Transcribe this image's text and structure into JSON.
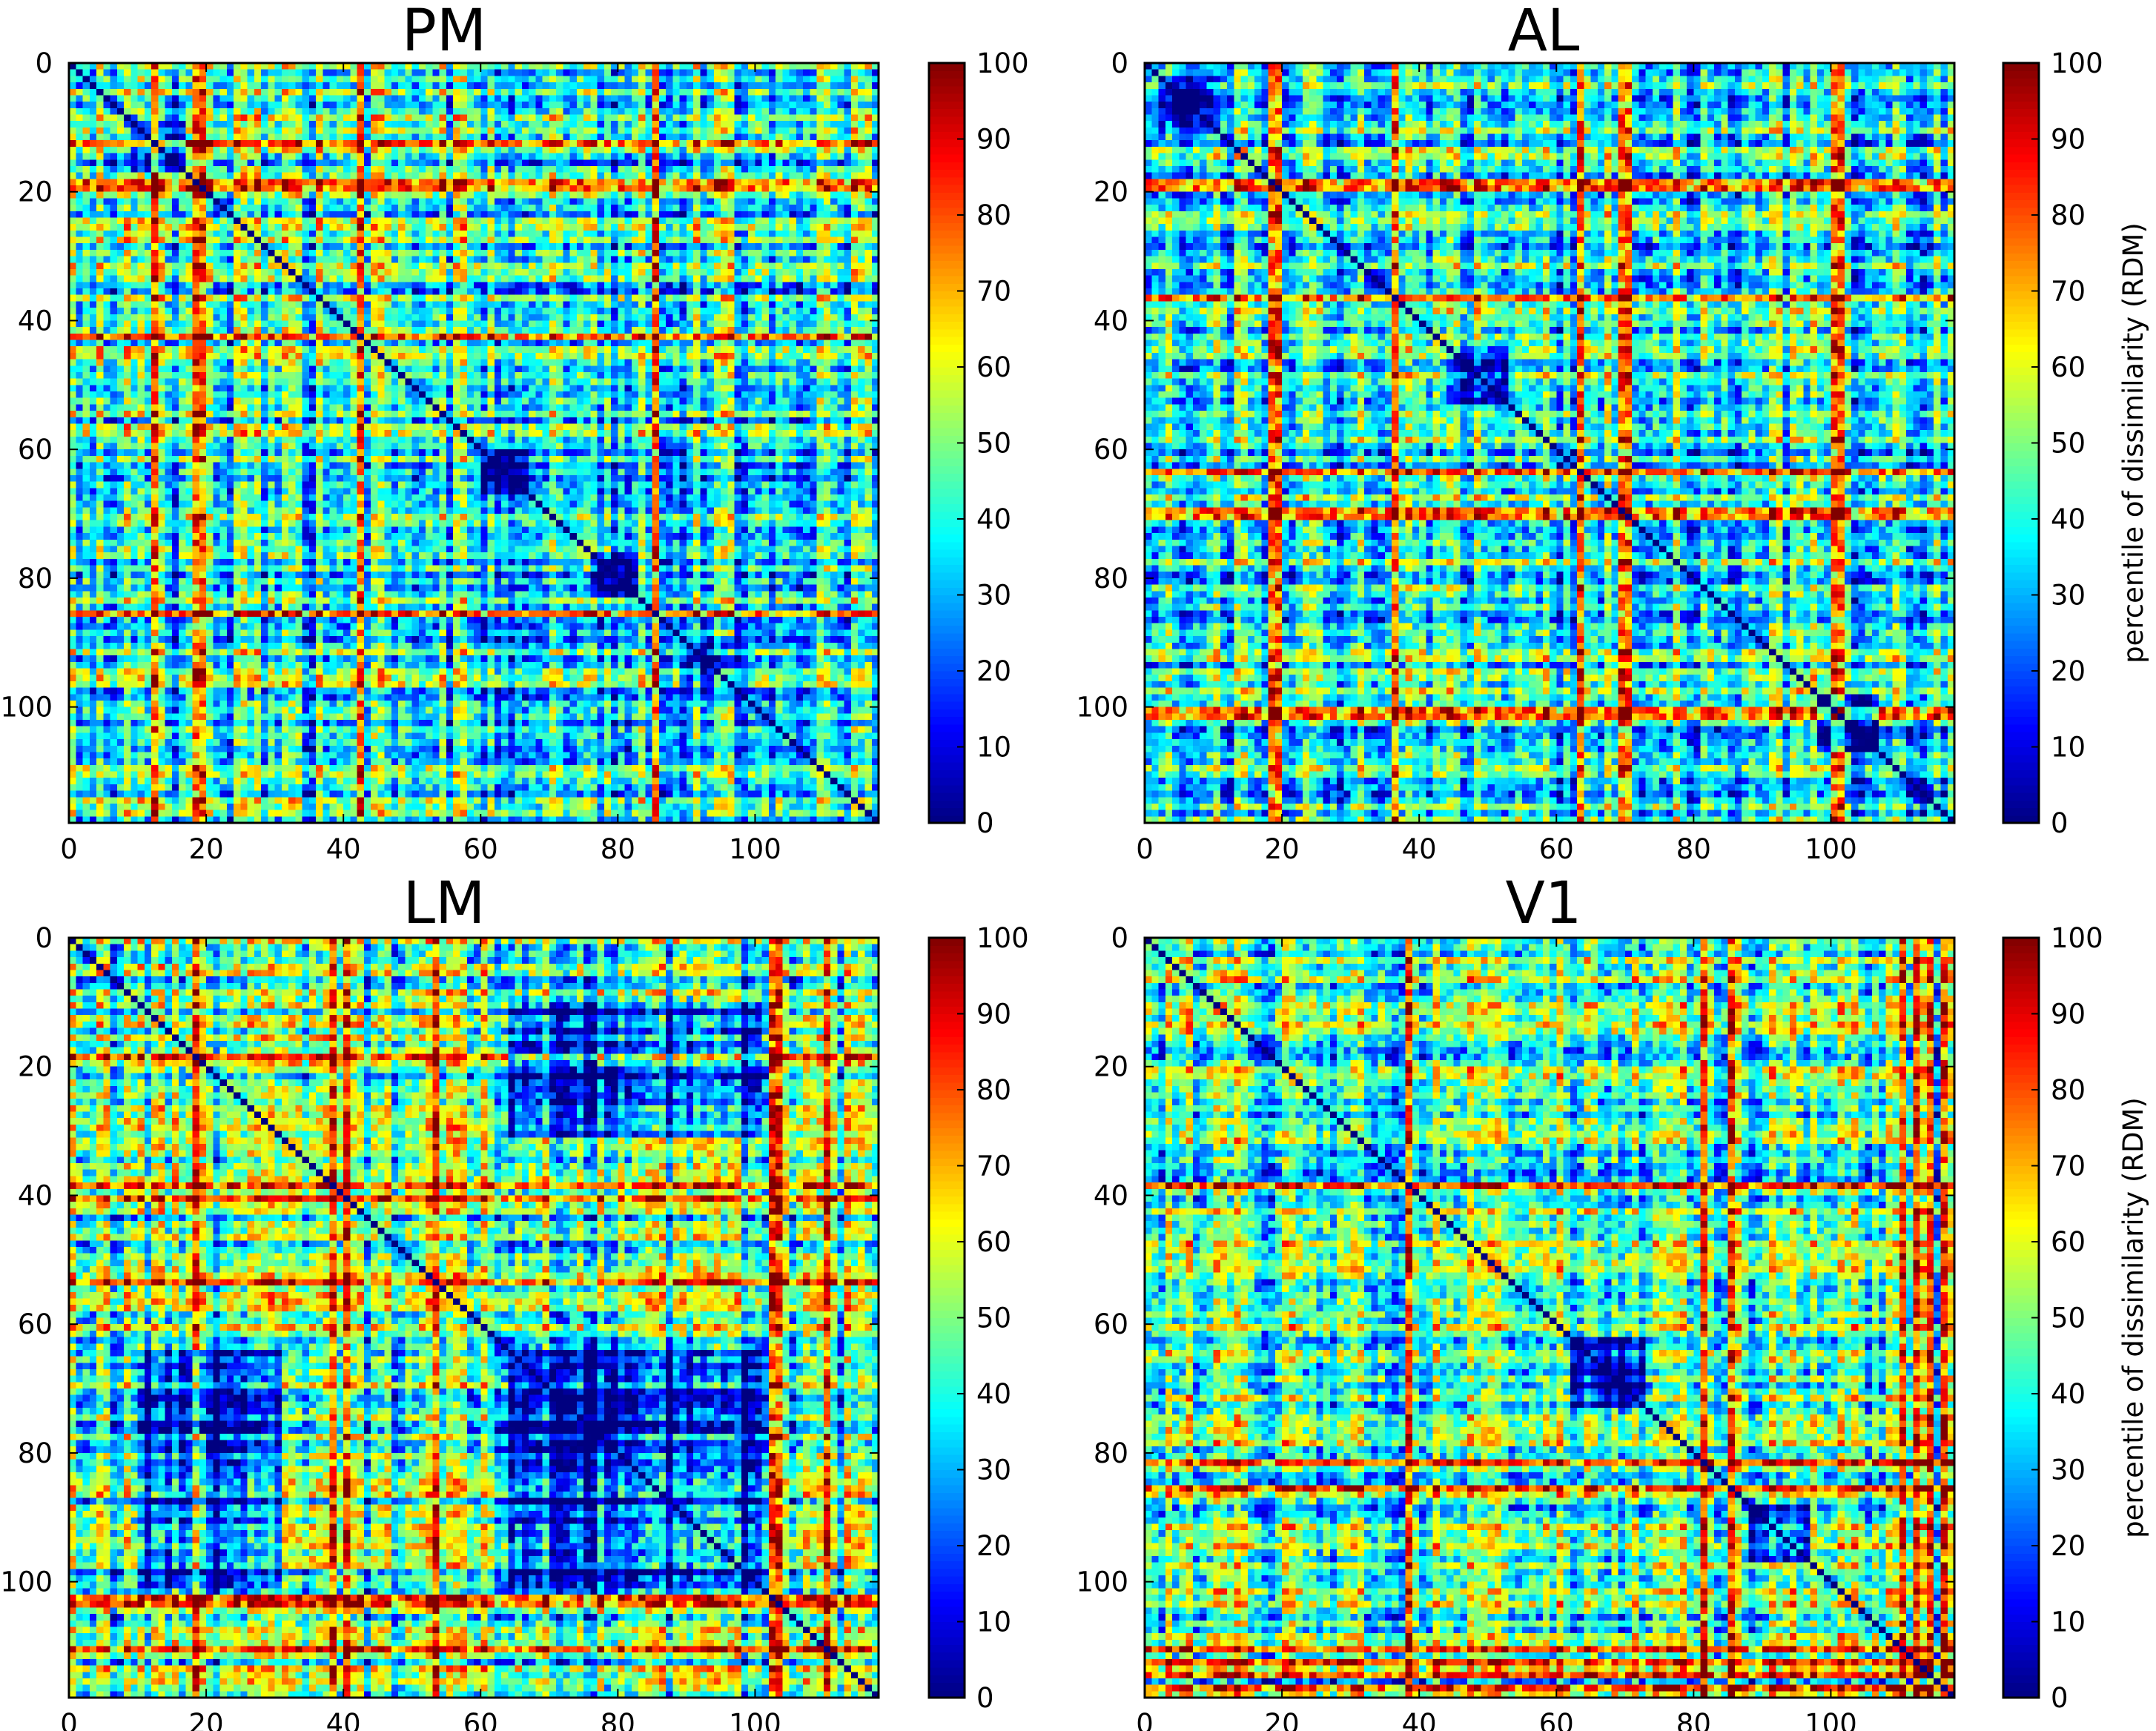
{
  "chart_data": [
    {
      "type": "heatmap",
      "title": "PM",
      "matrix_size": 118,
      "xticks": [
        "0",
        "20",
        "40",
        "60",
        "80",
        "100"
      ],
      "yticks": [
        "0",
        "20",
        "40",
        "60",
        "80",
        "100"
      ],
      "colorbar": {
        "ticks": [
          "0",
          "10",
          "20",
          "30",
          "40",
          "50",
          "60",
          "70",
          "80",
          "90",
          "100"
        ],
        "range": [
          0,
          100
        ],
        "label": "",
        "colormap": "jet"
      },
      "diagonal_value": 0,
      "baseline_percentile": 40,
      "high_dissimilarity_stimuli": [
        18,
        19,
        85,
        42,
        12
      ],
      "low_dissimilarity_blocks": [
        {
          "rows": [
            8,
            16
          ],
          "cols": [
            8,
            16
          ]
        },
        {
          "rows": [
            60,
            66
          ],
          "cols": [
            60,
            66
          ]
        },
        {
          "rows": [
            76,
            82
          ],
          "cols": [
            76,
            82
          ]
        },
        {
          "rows": [
            90,
            96
          ],
          "cols": [
            90,
            96
          ]
        }
      ]
    },
    {
      "type": "heatmap",
      "title": "AL",
      "matrix_size": 118,
      "xticks": [
        "0",
        "20",
        "40",
        "60",
        "80",
        "100"
      ],
      "yticks": [
        "0",
        "20",
        "40",
        "60",
        "80",
        "100"
      ],
      "colorbar": {
        "ticks": [
          "0",
          "10",
          "20",
          "30",
          "40",
          "50",
          "60",
          "70",
          "80",
          "90",
          "100"
        ],
        "range": [
          0,
          100
        ],
        "label": "percentile of dissimilarity (RDM)",
        "colormap": "jet"
      },
      "diagonal_value": 0,
      "baseline_percentile": 40,
      "high_dissimilarity_stimuli": [
        69,
        70,
        100,
        101,
        36,
        63,
        18,
        19
      ],
      "low_dissimilarity_blocks": [
        {
          "rows": [
            2,
            10
          ],
          "cols": [
            2,
            10
          ]
        },
        {
          "rows": [
            98,
            106
          ],
          "cols": [
            98,
            106
          ]
        },
        {
          "rows": [
            44,
            52
          ],
          "cols": [
            44,
            52
          ]
        }
      ]
    },
    {
      "type": "heatmap",
      "title": "LM",
      "matrix_size": 118,
      "xticks": [
        "0",
        "20",
        "40",
        "60",
        "80",
        "100"
      ],
      "yticks": [
        "0",
        "20",
        "40",
        "60",
        "80",
        "100"
      ],
      "colorbar": {
        "ticks": [
          "0",
          "10",
          "20",
          "30",
          "40",
          "50",
          "60",
          "70",
          "80",
          "90",
          "100"
        ],
        "range": [
          0,
          100
        ],
        "label": "",
        "colormap": "jet"
      },
      "diagonal_value": 0,
      "baseline_percentile": 42,
      "high_dissimilarity_stimuli": [
        18,
        38,
        40,
        53,
        102,
        103,
        110
      ],
      "low_dissimilarity_blocks": [
        {
          "rows": [
            64,
            100
          ],
          "cols": [
            64,
            100
          ]
        },
        {
          "rows": [
            10,
            30
          ],
          "cols": [
            64,
            100
          ]
        },
        {
          "rows": [
            64,
            100
          ],
          "cols": [
            10,
            30
          ]
        }
      ]
    },
    {
      "type": "heatmap",
      "title": "V1",
      "matrix_size": 118,
      "xticks": [
        "0",
        "20",
        "40",
        "60",
        "80",
        "100"
      ],
      "yticks": [
        "0",
        "20",
        "40",
        "60",
        "80",
        "100"
      ],
      "colorbar": {
        "ticks": [
          "0",
          "10",
          "20",
          "30",
          "40",
          "50",
          "60",
          "70",
          "80",
          "90",
          "100"
        ],
        "range": [
          0,
          100
        ],
        "label": "percentile of dissimilarity (RDM)",
        "colormap": "jet"
      },
      "diagonal_value": 0,
      "baseline_percentile": 45,
      "high_dissimilarity_stimuli": [
        81,
        85,
        38,
        110,
        112,
        114,
        116
      ],
      "low_dissimilarity_blocks": [
        {
          "rows": [
            62,
            72
          ],
          "cols": [
            62,
            72
          ]
        },
        {
          "rows": [
            88,
            96
          ],
          "cols": [
            88,
            96
          ]
        }
      ]
    }
  ]
}
